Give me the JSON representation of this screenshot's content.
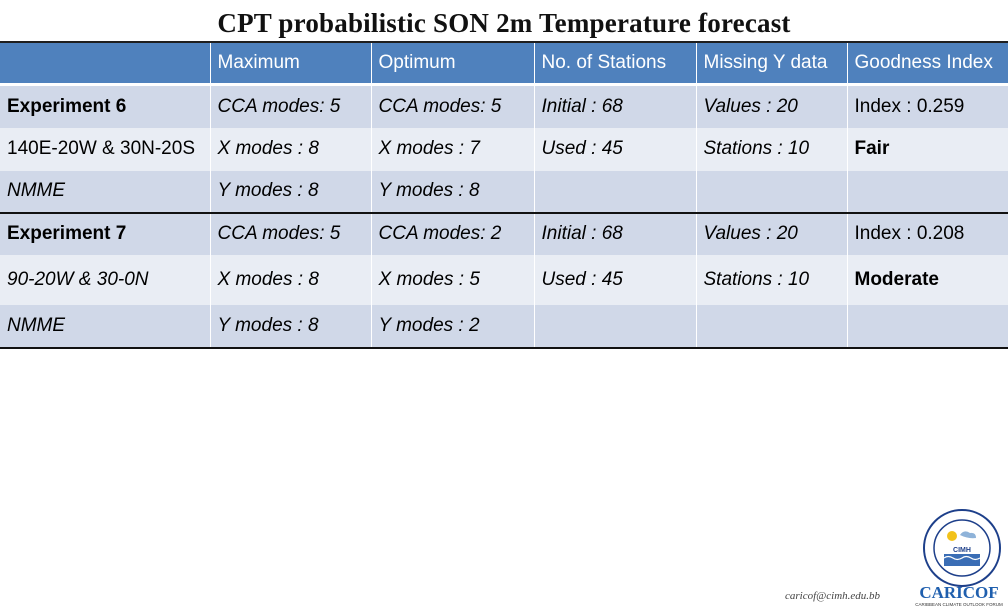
{
  "title": "CPT probabilistic SON 2m Temperature forecast",
  "headers": [
    "",
    "Maximum",
    "Optimum",
    "No. of Stations",
    "Missing Y data",
    "Goodness Index"
  ],
  "rows": [
    {
      "c0": "Experiment 6",
      "c1": "CCA modes: 5",
      "c2": "CCA modes: 5",
      "c3": "Initial : 68",
      "c4": "Values : 20",
      "c5": "Index : 0.259"
    },
    {
      "c0": "140E-20W & 30N-20S",
      "c1": "X modes : 8",
      "c2": "X modes : 7",
      "c3": "Used : 45",
      "c4": "Stations : 10",
      "c5": "Fair"
    },
    {
      "c0": "NMME",
      "c1": "Y modes : 8",
      "c2": "Y modes : 8",
      "c3": "",
      "c4": "",
      "c5": ""
    },
    {
      "c0": "Experiment 7",
      "c1": "CCA modes: 5",
      "c2": "CCA modes: 2",
      "c3": "Initial : 68",
      "c4": "Values : 20",
      "c5": "Index : 0.208"
    },
    {
      "c0": "90-20W & 30-0N",
      "c1": "X modes : 8",
      "c2": "X modes : 5",
      "c3": "Used : 45",
      "c4": "Stations : 10",
      "c5": "Moderate"
    },
    {
      "c0": "NMME",
      "c1": "Y modes : 8",
      "c2": "Y modes : 2",
      "c3": "",
      "c4": "",
      "c5": ""
    }
  ],
  "footer": {
    "email": "caricof@cimh.edu.bb",
    "logo_text": "CIMH",
    "brand_text": "CARICOF",
    "brand_tagline": "CARIBBEAN CLIMATE OUTLOOK FORUM"
  },
  "colors": {
    "header": "#4f81bd",
    "row_dark": "#d0d8e8",
    "row_light": "#e9edf4"
  }
}
